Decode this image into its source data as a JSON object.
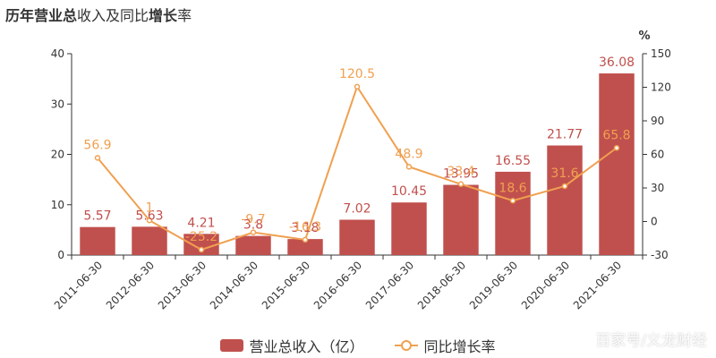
{
  "title": {
    "parts": [
      {
        "text": "历年",
        "bold": true
      },
      {
        "text": "营业总",
        "bold": true
      },
      {
        "text": "收入及同比",
        "bold": false
      },
      {
        "text": "增长",
        "bold": true
      },
      {
        "text": "率",
        "bold": false
      }
    ]
  },
  "watermark": "百家号/义龙财经",
  "colors": {
    "bar": "#c0504d",
    "line": "#f0a050",
    "bar_label": "#c0504d",
    "line_label": "#f0a050"
  },
  "chart_data": {
    "type": "bar",
    "categories": [
      "2011-06-30",
      "2012-06-30",
      "2013-06-30",
      "2014-06-30",
      "2015-06-30",
      "2016-06-30",
      "2017-06-30",
      "2018-06-30",
      "2019-06-30",
      "2020-06-30",
      "2021-06-30"
    ],
    "series": [
      {
        "name": "营业总收入（亿）",
        "type": "bar",
        "axis": "left",
        "values": [
          5.57,
          5.63,
          4.21,
          3.8,
          3.18,
          7.02,
          10.45,
          13.95,
          16.55,
          21.77,
          36.08
        ],
        "labels": [
          "5.57",
          "5.63",
          "4.21",
          "3.8",
          "3.18",
          "7.02",
          "10.45",
          "13.95",
          "16.55",
          "21.77",
          "36.08"
        ]
      },
      {
        "name": "同比增长率",
        "type": "line",
        "axis": "right",
        "values": [
          56.9,
          1.0,
          -25.2,
          -9.7,
          -16.3,
          120.5,
          48.9,
          33.4,
          18.6,
          31.6,
          65.8
        ],
        "labels": [
          "56.9",
          "1",
          "-25.2",
          "-9.7",
          "-16.3",
          "120.5",
          "48.9",
          "33.4",
          "18.6",
          "31.6",
          "65.8"
        ]
      }
    ],
    "y_left": {
      "min": 0,
      "max": 40,
      "ticks": [
        0,
        10,
        20,
        30,
        40
      ]
    },
    "y_right": {
      "min": -30,
      "max": 150,
      "ticks": [
        -30,
        0,
        30,
        60,
        90,
        120,
        150
      ],
      "unit": "%"
    },
    "legend": "bottom-center",
    "grid": false
  }
}
